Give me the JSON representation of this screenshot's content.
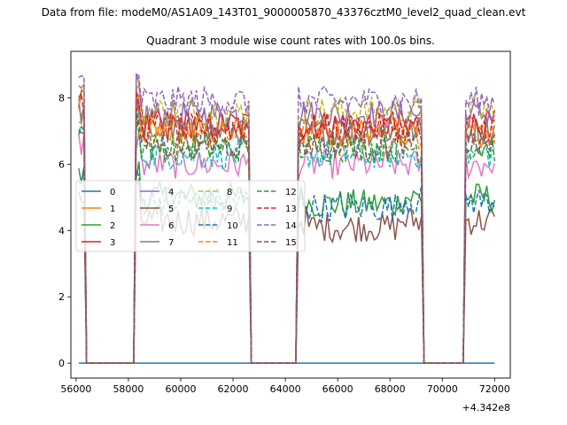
{
  "suptitle": "Data from file: modeM0/AS1A09_143T01_9000005870_43376cztM0_level2_quad_clean.evt",
  "chart_data": {
    "type": "line",
    "title": "Quadrant 3 module wise count rates with 100.0s bins.",
    "xlabel": "",
    "ylabel": "",
    "x_offset_label": "+4.342e8",
    "xlim": [
      55800,
      72600
    ],
    "ylim": [
      -0.45,
      9.4
    ],
    "x_ticks": [
      56000,
      58000,
      60000,
      62000,
      64000,
      66000,
      68000,
      70000,
      72000
    ],
    "y_ticks": [
      0,
      2,
      4,
      6,
      8
    ],
    "grid": false,
    "legend": {
      "placement": "center-left",
      "columns": 4
    },
    "segments": [
      {
        "start": 56100,
        "end": 56300
      },
      {
        "start": 58300,
        "end": 62600
      },
      {
        "start": 64500,
        "end": 69200
      },
      {
        "start": 70900,
        "end": 72000
      }
    ],
    "series": [
      {
        "name": "0",
        "color": "#1f77b4",
        "style": "solid",
        "level": 0.0
      },
      {
        "name": "1",
        "color": "#ff7f0e",
        "style": "solid",
        "level": 7.0
      },
      {
        "name": "2",
        "color": "#2ca02c",
        "style": "solid",
        "level": 5.0
      },
      {
        "name": "3",
        "color": "#d62728",
        "style": "solid",
        "level": 7.2
      },
      {
        "name": "4",
        "color": "#9467bd",
        "style": "solid",
        "level": 7.5
      },
      {
        "name": "5",
        "color": "#8c564b",
        "style": "solid",
        "level": 4.3
      },
      {
        "name": "6",
        "color": "#e377c2",
        "style": "solid",
        "level": 6.0
      },
      {
        "name": "7",
        "color": "#7f7f7f",
        "style": "solid",
        "level": 7.0
      },
      {
        "name": "8",
        "color": "#bcbd22",
        "style": "dashed",
        "level": 7.6
      },
      {
        "name": "9",
        "color": "#17becf",
        "style": "dashed",
        "level": 6.3
      },
      {
        "name": "10",
        "color": "#1f77b4",
        "style": "dashed",
        "level": 4.9
      },
      {
        "name": "11",
        "color": "#ff7f0e",
        "style": "dashed",
        "level": 6.9
      },
      {
        "name": "12",
        "color": "#2ca02c",
        "style": "dashed",
        "level": 6.5
      },
      {
        "name": "13",
        "color": "#d62728",
        "style": "dashed",
        "level": 7.1
      },
      {
        "name": "14",
        "color": "#9467bd",
        "style": "dashed",
        "level": 7.9
      },
      {
        "name": "15",
        "color": "#8c564b",
        "style": "dashed",
        "level": 6.6
      }
    ]
  }
}
